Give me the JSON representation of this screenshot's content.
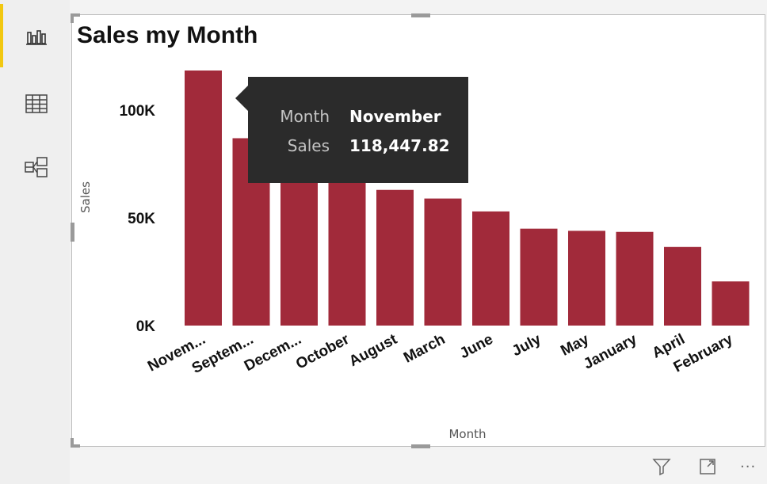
{
  "rail": {
    "items": [
      {
        "name": "report-view",
        "icon": "bar-chart-icon",
        "active": true
      },
      {
        "name": "data-view",
        "icon": "table-grid-icon",
        "active": false
      },
      {
        "name": "model-view",
        "icon": "model-diagram-icon",
        "active": false
      }
    ],
    "accent_color": "#f2c811"
  },
  "tooltip": {
    "rows": [
      {
        "key": "Month",
        "value": "November"
      },
      {
        "key": "Sales",
        "value": "118,447.82"
      }
    ]
  },
  "footer": {
    "icons": [
      "filter-icon",
      "focus-mode-icon",
      "more-options-icon"
    ],
    "more_label": "···"
  },
  "chart_data": {
    "type": "bar",
    "title": "Sales my Month",
    "xlabel": "Month",
    "ylabel": "Sales",
    "categories": [
      "Novem...",
      "Septem...",
      "Decem...",
      "October",
      "August",
      "March",
      "June",
      "July",
      "May",
      "January",
      "April",
      "February"
    ],
    "values": [
      118447.82,
      87000,
      84000,
      81000,
      63000,
      59000,
      53000,
      45000,
      44000,
      43500,
      36500,
      20500
    ],
    "ylim": [
      0,
      118447.82
    ],
    "yticks": [
      {
        "value": 0,
        "label": "0K"
      },
      {
        "value": 50000,
        "label": "50K"
      },
      {
        "value": 100000,
        "label": "100K"
      }
    ],
    "bar_color": "#a12a3a",
    "grid": false,
    "legend": "none"
  }
}
